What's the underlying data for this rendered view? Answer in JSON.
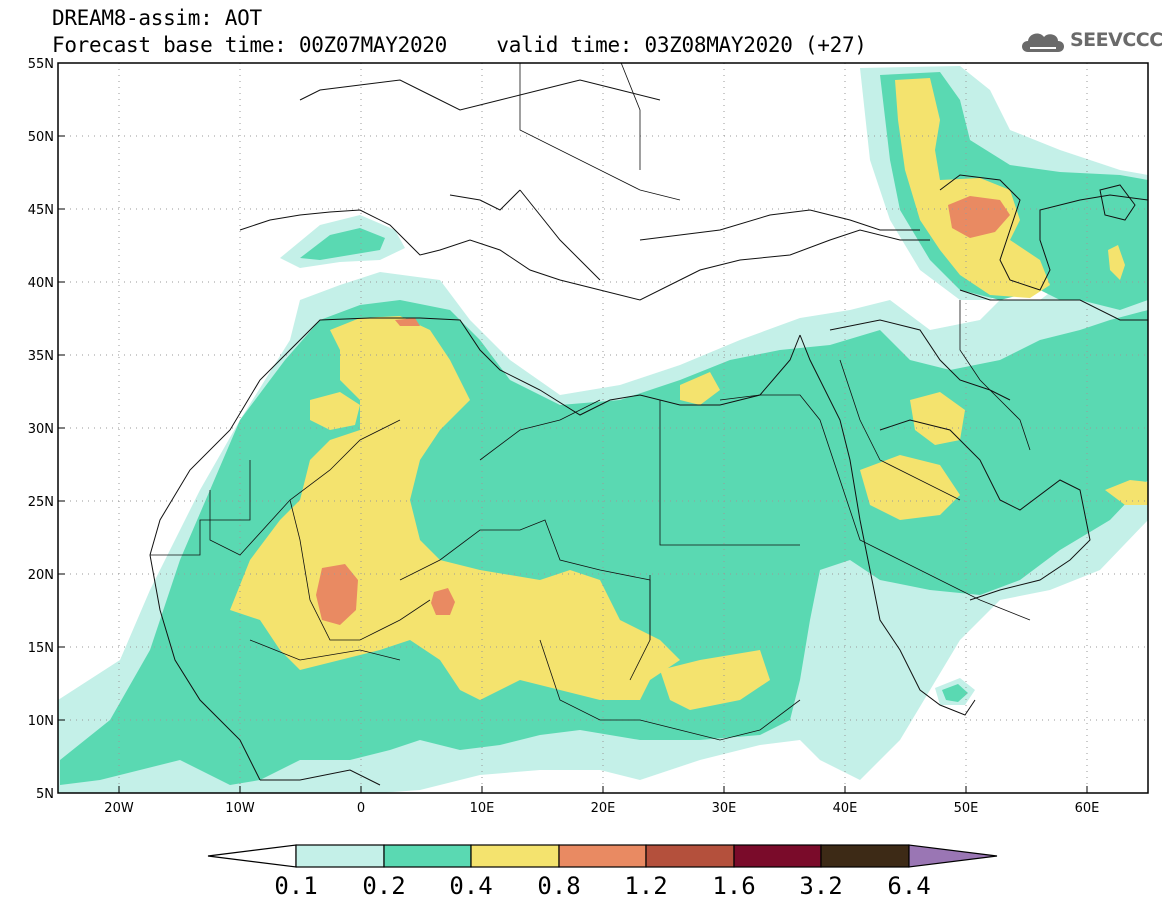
{
  "header": {
    "line1": "DREAM8-assim: AOT",
    "line2": "Forecast base time: 00Z07MAY2020",
    "valid_time": "valid time: 03Z08MAY2020 (+27)"
  },
  "logo": {
    "text": "SEEVCCC",
    "icon": "cloud-icon"
  },
  "map": {
    "lat_labels": [
      "55N",
      "50N",
      "45N",
      "40N",
      "35N",
      "30N",
      "25N",
      "20N",
      "15N",
      "10N",
      "5N"
    ],
    "lon_labels": [
      "20W",
      "10W",
      "0",
      "10E",
      "20E",
      "30E",
      "40E",
      "50E",
      "60E"
    ],
    "lon_range": [
      -25,
      65
    ],
    "lat_range": [
      5,
      55
    ],
    "grid": "dotted"
  },
  "colorbar": {
    "labels": [
      "0.1",
      "0.2",
      "0.4",
      "0.8",
      "1.2",
      "1.6",
      "3.2",
      "6.4"
    ],
    "colors": [
      "#ffffff",
      "#c4f0e8",
      "#5ad9b2",
      "#f4e36e",
      "#e98a62",
      "#b4503c",
      "#7a0b2a",
      "#3d2a16",
      "#9a76b4"
    ]
  }
}
